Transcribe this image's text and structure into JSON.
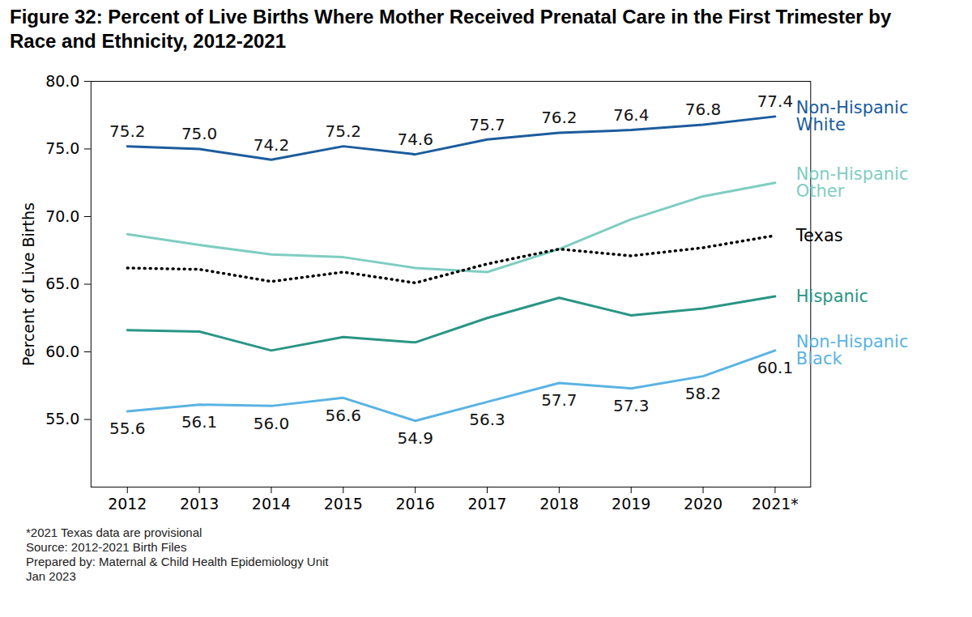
{
  "chart_data": {
    "type": "line",
    "title": "Figure 32: Percent of Live Births Where Mother Received Prenatal Care in the First Trimester by Race and Ethnicity, 2012-2021",
    "x": [
      "2012",
      "2013",
      "2014",
      "2015",
      "2016",
      "2017",
      "2018",
      "2019",
      "2020",
      "2021*"
    ],
    "ylabel": "Percent of Live Births",
    "ylim": [
      50,
      80
    ],
    "yticks": [
      {
        "value": 55,
        "label": "55.0"
      },
      {
        "value": 60,
        "label": "60.0"
      },
      {
        "value": 65,
        "label": "65.0"
      },
      {
        "value": 70,
        "label": "70.0"
      },
      {
        "value": 75,
        "label": "75.0"
      },
      {
        "value": 80,
        "label": "80.0"
      }
    ],
    "grid": false,
    "series": [
      {
        "name": "Non-Hispanic White",
        "color": "#1c5c9c",
        "line_style": "solid",
        "data_labels": true,
        "values": [
          75.2,
          75.0,
          74.2,
          75.2,
          74.6,
          75.7,
          76.2,
          76.4,
          76.8,
          77.4
        ],
        "value_labels": [
          "75.2",
          "75.0",
          "74.2",
          "75.2",
          "74.6",
          "75.7",
          "76.2",
          "76.4",
          "76.8",
          "77.4"
        ]
      },
      {
        "name": "Non-Hispanic Other",
        "color": "#7fcdc2",
        "line_style": "solid",
        "data_labels": false,
        "values": [
          68.7,
          67.9,
          67.2,
          67.0,
          66.2,
          65.9,
          67.6,
          69.8,
          71.5,
          72.5
        ]
      },
      {
        "name": "Texas",
        "color": "#000000",
        "line_style": "dotted",
        "data_labels": false,
        "values": [
          66.2,
          66.1,
          65.2,
          65.9,
          65.1,
          66.5,
          67.6,
          67.1,
          67.7,
          68.6
        ]
      },
      {
        "name": "Hispanic",
        "color": "#2a9585",
        "line_style": "solid",
        "data_labels": false,
        "values": [
          61.6,
          61.5,
          60.1,
          61.1,
          60.7,
          62.5,
          64.0,
          62.7,
          63.2,
          64.1
        ]
      },
      {
        "name": "Non-Hispanic Black",
        "color": "#5ab3e3",
        "line_style": "solid",
        "data_labels": true,
        "values": [
          55.6,
          56.1,
          56.0,
          56.6,
          54.9,
          56.3,
          57.7,
          57.3,
          58.2,
          60.1
        ],
        "value_labels": [
          "55.6",
          "56.1",
          "56.0",
          "56.6",
          "54.9",
          "56.3",
          "57.7",
          "57.3",
          "58.2",
          "60.1"
        ]
      }
    ],
    "footnotes": [
      "*2021 Texas data are provisional",
      "Source: 2012-2021 Birth Files",
      "Prepared by: Maternal & Child Health Epidemiology Unit",
      "Jan 2023"
    ]
  }
}
